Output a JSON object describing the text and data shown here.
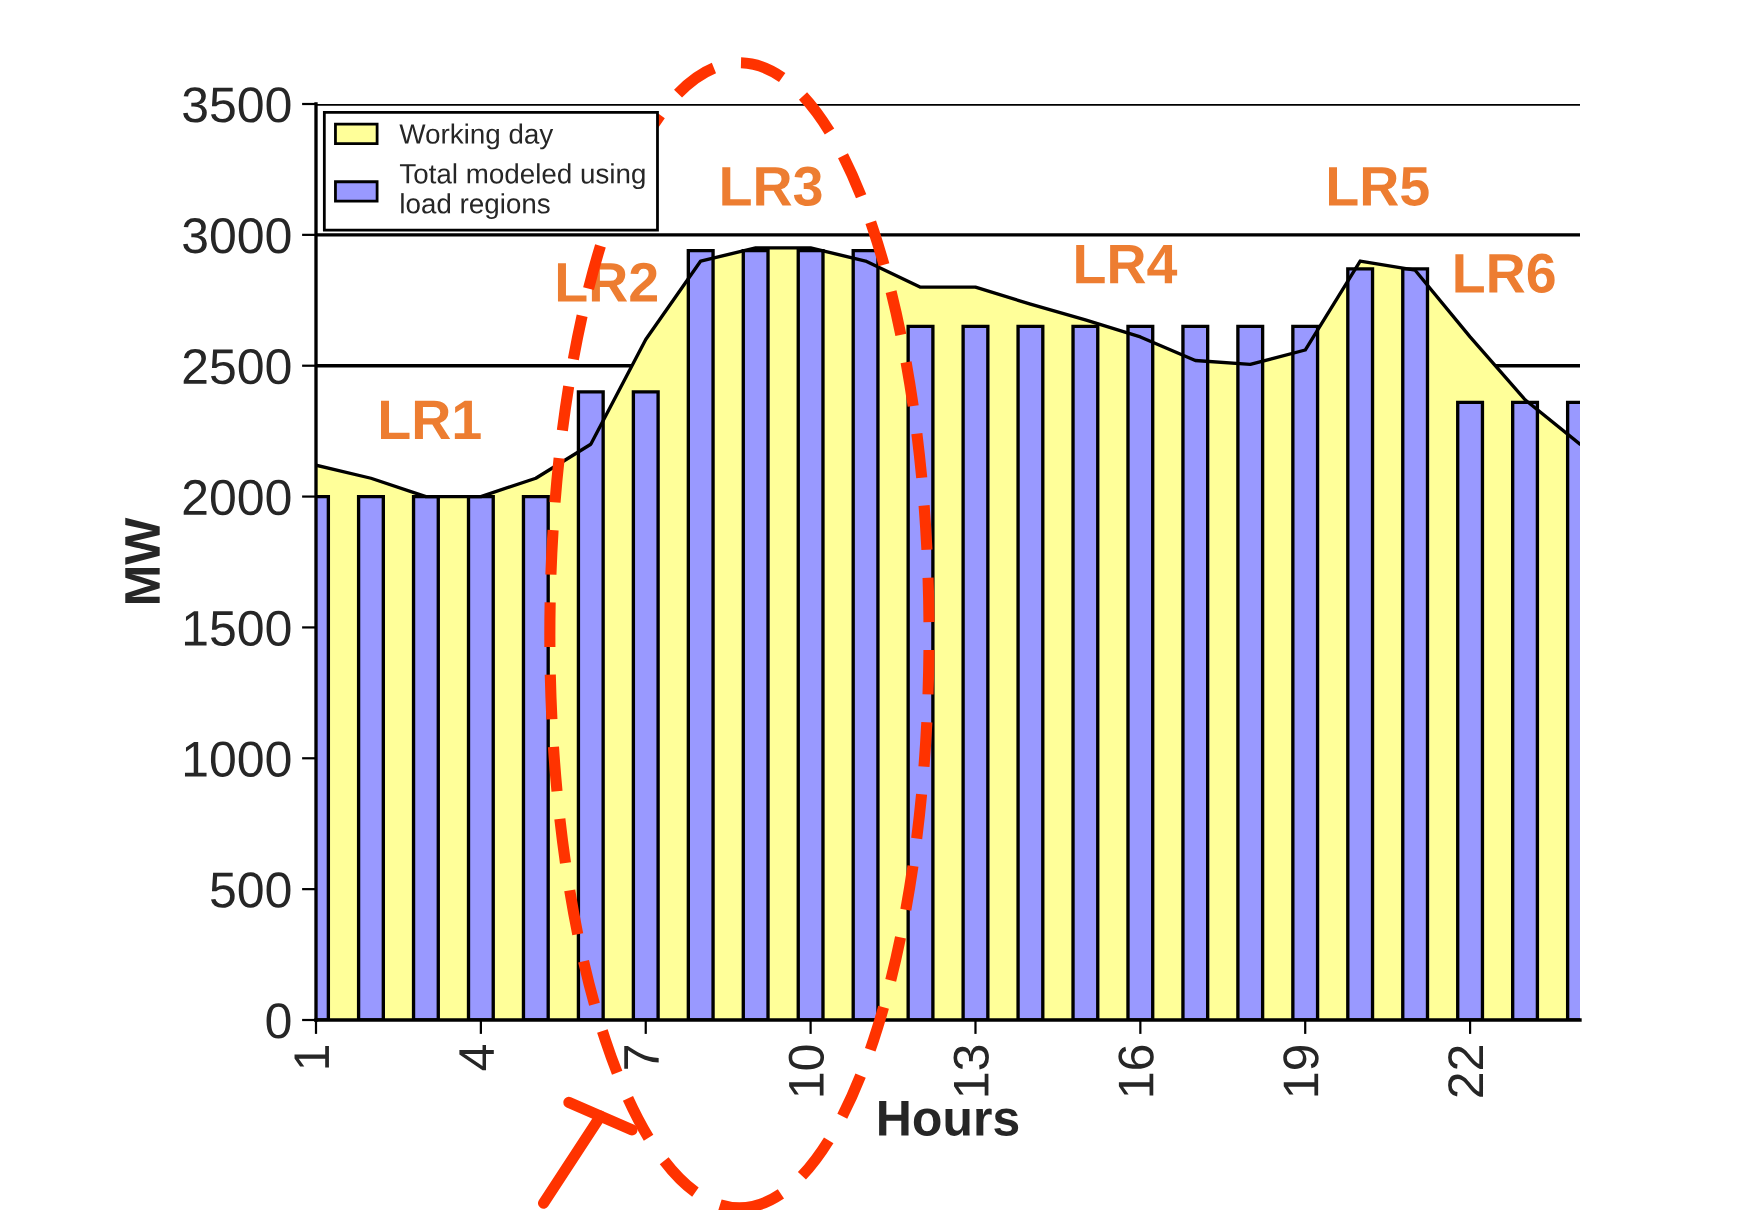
{
  "chart_data": {
    "type": "bar",
    "xlabel": "Hours",
    "ylabel": "MW",
    "x": [
      1,
      2,
      3,
      4,
      5,
      6,
      7,
      8,
      9,
      10,
      11,
      12,
      13,
      14,
      15,
      16,
      17,
      18,
      19,
      20,
      21,
      22,
      23,
      24
    ],
    "series": [
      {
        "name": "Working day",
        "type": "area",
        "color": "#ffff99",
        "values": [
          2120,
          2070,
          2000,
          2000,
          2070,
          2200,
          2600,
          2900,
          2950,
          2950,
          2900,
          2800,
          2800,
          2735,
          2675,
          2610,
          2520,
          2505,
          2560,
          2900,
          2865,
          2610,
          2370,
          2200
        ]
      },
      {
        "name": "Total modeled using\nload regions",
        "color": "#9999ff",
        "values": [
          2000,
          2000,
          2000,
          2000,
          2000,
          2400,
          2400,
          2940,
          2940,
          2940,
          2940,
          2650,
          2650,
          2650,
          2650,
          2650,
          2650,
          2650,
          2650,
          2870,
          2870,
          2360,
          2360,
          2360
        ]
      }
    ],
    "xlim": [
      1,
      24
    ],
    "xticks": [
      1,
      4,
      7,
      10,
      13,
      16,
      19,
      22
    ],
    "ylim": [
      0,
      3500
    ],
    "yticks": [
      0,
      500,
      1000,
      1500,
      2000,
      2500,
      3000,
      3500
    ],
    "grid": "y",
    "legend": "upper left",
    "annotations": [
      "LR1",
      "LR2",
      "LR3",
      "LR4",
      "LR5",
      "LR6"
    ]
  }
}
